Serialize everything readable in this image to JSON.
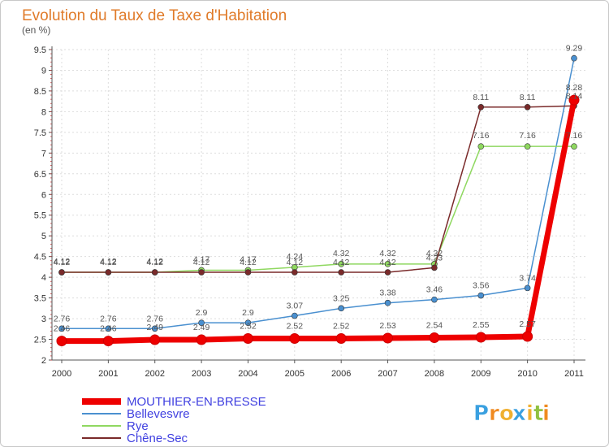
{
  "chart_data": {
    "type": "line",
    "title": "Evolution du Taux de Taxe d'Habitation",
    "subtitle": "(en %)",
    "x": [
      "2000",
      "2001",
      "2002",
      "2003",
      "2004",
      "2005",
      "2006",
      "2007",
      "2008",
      "2009",
      "2010",
      "2011"
    ],
    "ylim": [
      2,
      9.5
    ],
    "yticks": [
      "2",
      "2.5",
      "3",
      "3.5",
      "4",
      "4.5",
      "5",
      "5.5",
      "6",
      "6.5",
      "7",
      "7.5",
      "8",
      "8.5",
      "9",
      "9.5"
    ],
    "grid": true,
    "legend_position": "bottom-left",
    "series": [
      {
        "name": "Bellevesvre",
        "color": "#4a90d0",
        "values": [
          2.76,
          2.76,
          2.76,
          2.9,
          2.9,
          3.07,
          3.25,
          3.38,
          3.46,
          3.56,
          3.74,
          9.29
        ],
        "labels": [
          "2.76",
          "2.76",
          "2.76",
          "2.9",
          "2.9",
          "3.07",
          "3.25",
          "3.38",
          "3.46",
          "3.56",
          "3.74",
          "9.29"
        ]
      },
      {
        "name": "Rye",
        "color": "#8fd860",
        "values": [
          4.12,
          4.12,
          4.12,
          4.17,
          4.17,
          4.24,
          4.32,
          4.32,
          4.32,
          7.16,
          7.16,
          7.16
        ],
        "labels": [
          "4.12",
          "4.12",
          "4.12",
          "4.17",
          "4.17",
          "4.24",
          "4.32",
          "4.32",
          "4.32",
          "7.16",
          "7.16",
          "7.16"
        ]
      },
      {
        "name": "Chêne-Sec",
        "color": "#7a2a2a",
        "values": [
          4.12,
          4.12,
          4.12,
          4.12,
          4.12,
          4.12,
          4.12,
          4.12,
          4.23,
          8.11,
          8.11,
          8.14
        ],
        "labels": [
          "4.12",
          "4.12",
          "4.12",
          "4.12",
          "4.12",
          "4.12",
          "4.12",
          "4.12",
          "4.23",
          "8.11",
          "8.11",
          "8.14"
        ]
      },
      {
        "name": "MOUTHIER-EN-BRESSE",
        "color": "#ee0000",
        "values": [
          2.46,
          2.46,
          2.49,
          2.49,
          2.52,
          2.52,
          2.52,
          2.53,
          2.54,
          2.55,
          2.57,
          8.28
        ],
        "labels": [
          "2.46",
          "2.46",
          "2.49",
          "2.49",
          "2.52",
          "2.52",
          "2.52",
          "2.53",
          "2.54",
          "2.55",
          "2.57",
          "8.28"
        ]
      }
    ],
    "legend": [
      {
        "name": "MOUTHIER-EN-BRESSE",
        "color": "#ee0000",
        "text_color": "#4040e0"
      },
      {
        "name": "Bellevesvre",
        "color": "#4a90d0",
        "text_color": "#4040e0"
      },
      {
        "name": "Rye",
        "color": "#8fd860",
        "text_color": "#4040e0"
      },
      {
        "name": "Chêne-Sec",
        "color": "#7a2a2a",
        "text_color": "#4040e0"
      }
    ]
  },
  "logo": {
    "letters": [
      "P",
      "r",
      "o",
      "x",
      "i",
      "t",
      "i"
    ],
    "colors": [
      "#3aa0e0",
      "#f08a20",
      "#f0b030",
      "#3aa0e0",
      "#f0b030",
      "#8fc040",
      "#f08a20"
    ]
  }
}
